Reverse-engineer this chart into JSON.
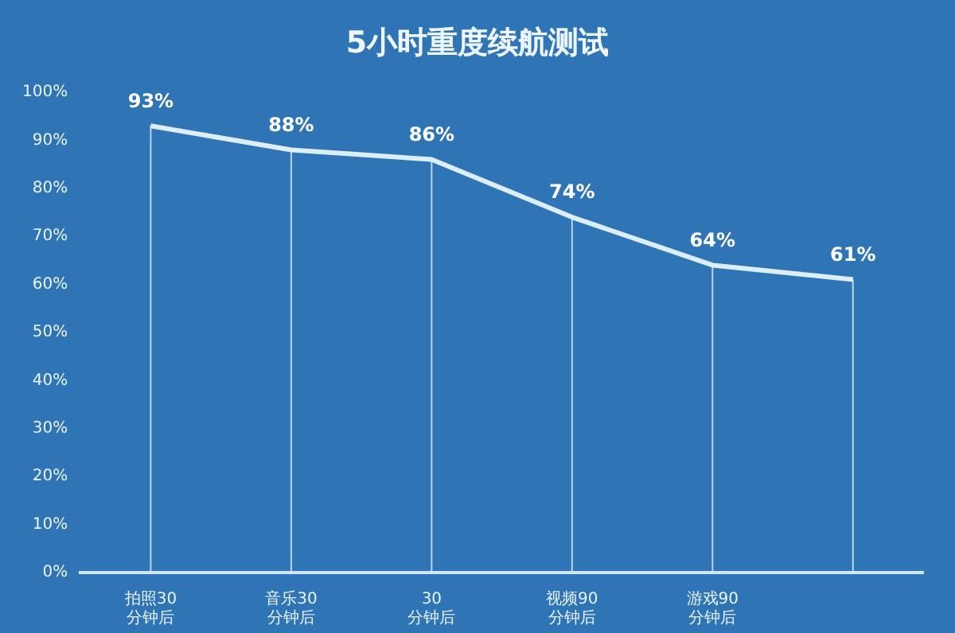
{
  "chart_data": {
    "type": "line",
    "title": "5小时重度续航测试",
    "categories": [
      "拍照30分钟后",
      "音乐30分钟后",
      "30分钟后",
      "视频90分钟后",
      "游戏90分钟后",
      null
    ],
    "series": [
      {
        "color": "#dceefa",
        "values": [
          93,
          88,
          86,
          74,
          64,
          61
        ]
      }
    ],
    "ylim": [
      0,
      100
    ],
    "yticks": [
      {
        "value": 0,
        "label": "0%"
      },
      {
        "value": 10,
        "label": "10%"
      },
      {
        "value": 20,
        "label": "20%"
      },
      {
        "value": 30,
        "label": "30%"
      },
      {
        "value": 40,
        "label": "40%"
      },
      {
        "value": 50,
        "label": "50%"
      },
      {
        "value": 60,
        "label": "60%"
      },
      {
        "value": 70,
        "label": "70%"
      },
      {
        "value": 80,
        "label": "80%"
      },
      {
        "value": 90,
        "label": "90%"
      },
      {
        "value": 100,
        "label": "100%"
      }
    ],
    "value_labels": [
      "93%",
      "88%",
      "86%",
      "74%",
      "64%",
      "61%"
    ],
    "grid": "x",
    "legend": false,
    "marker": "none"
  }
}
